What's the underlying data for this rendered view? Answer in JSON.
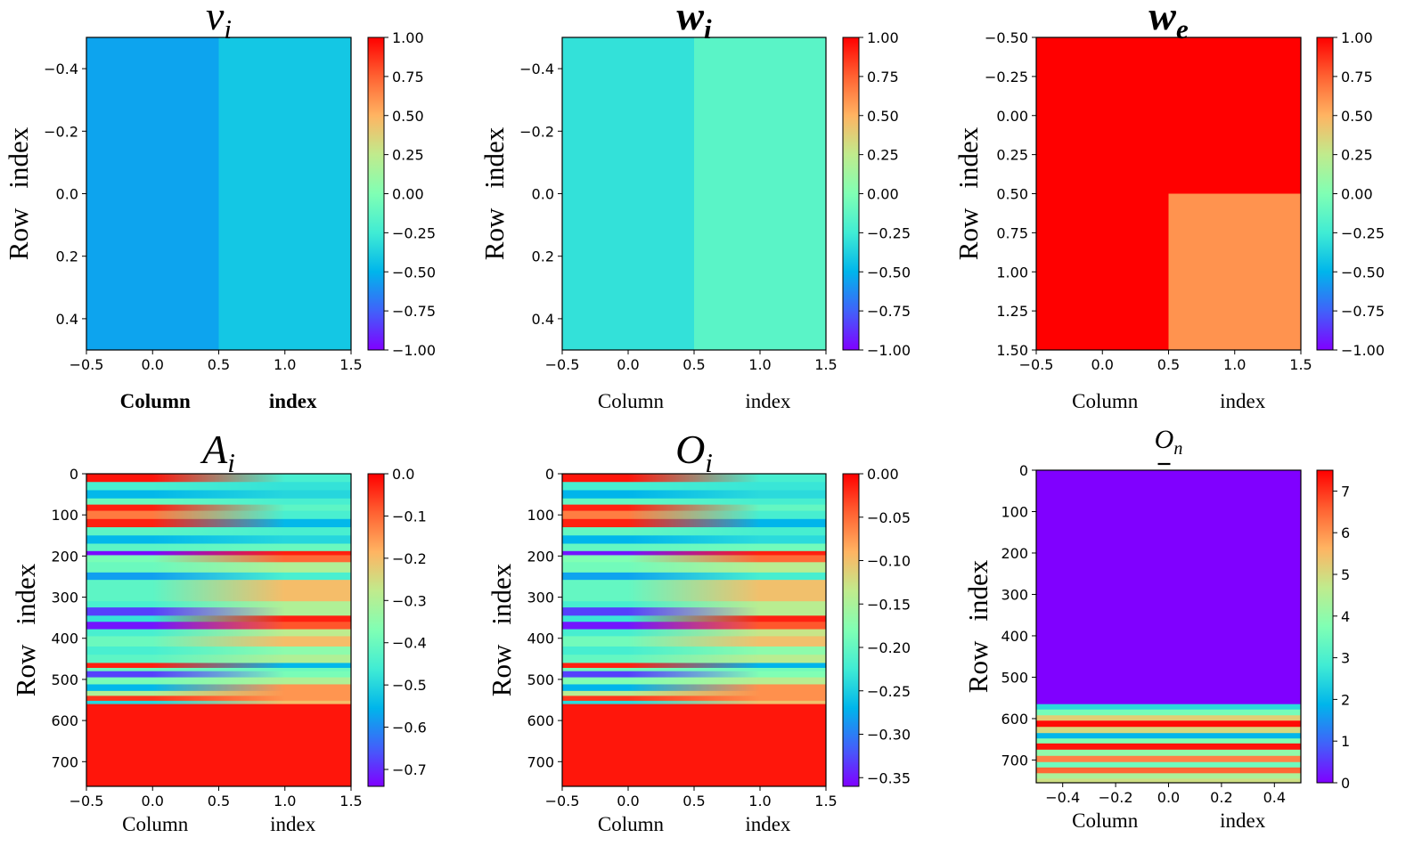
{
  "figure": "2x3 heatmap grid",
  "chart_data": [
    {
      "type": "heatmap",
      "title": "v",
      "subscript": "i",
      "title_bold": false,
      "xlabel_left": "Column",
      "xlabel_right": "index",
      "xlabel_bold": true,
      "ylabel_left": "Row",
      "ylabel_right": "index",
      "xlim": [
        -0.5,
        1.5
      ],
      "ylim": [
        -0.5,
        0.5
      ],
      "xticks": [
        "−0.5",
        "0.0",
        "0.5",
        "1.0",
        "1.5"
      ],
      "yticks": [
        "−0.4",
        "−0.2",
        "0.0",
        "0.2",
        "0.4"
      ],
      "ytick_values": [
        -0.4,
        -0.2,
        0.0,
        0.2,
        0.4
      ],
      "rows": 1,
      "cols": 2,
      "values": [
        [
          -0.55,
          -0.42
        ]
      ],
      "colorbar": {
        "min": -1.0,
        "max": 1.0,
        "ticks": [
          "1.00",
          "0.75",
          "0.50",
          "0.25",
          "0.00",
          "−0.25",
          "−0.50",
          "−0.75",
          "−1.00"
        ],
        "tick_values": [
          1.0,
          0.75,
          0.5,
          0.25,
          0.0,
          -0.25,
          -0.5,
          -0.75,
          -1.0
        ]
      }
    },
    {
      "type": "heatmap",
      "title": "w",
      "subscript": "i",
      "title_bold": true,
      "xlabel_left": "Column",
      "xlabel_right": "index",
      "xlabel_bold": false,
      "ylabel_left": "Row",
      "ylabel_right": "index",
      "xlim": [
        -0.5,
        1.5
      ],
      "ylim": [
        -0.5,
        0.5
      ],
      "xticks": [
        "−0.5",
        "0.0",
        "0.5",
        "1.0",
        "1.5"
      ],
      "yticks": [
        "−0.4",
        "−0.2",
        "0.0",
        "0.2",
        "0.4"
      ],
      "ytick_values": [
        -0.4,
        -0.2,
        0.0,
        0.2,
        0.4
      ],
      "rows": 1,
      "cols": 2,
      "values": [
        [
          -0.3,
          -0.15
        ]
      ],
      "colorbar": {
        "min": -1.0,
        "max": 1.0,
        "ticks": [
          "1.00",
          "0.75",
          "0.50",
          "0.25",
          "0.00",
          "−0.25",
          "−0.50",
          "−0.75",
          "−1.00"
        ],
        "tick_values": [
          1.0,
          0.75,
          0.5,
          0.25,
          0.0,
          -0.25,
          -0.5,
          -0.75,
          -1.0
        ]
      }
    },
    {
      "type": "heatmap",
      "title": "w",
      "subscript": "e",
      "title_bold": true,
      "xlabel_left": "Column",
      "xlabel_right": "index",
      "xlabel_bold": false,
      "ylabel_left": "Row",
      "ylabel_right": "index",
      "xlim": [
        -0.5,
        1.5
      ],
      "ylim": [
        -0.5,
        1.5
      ],
      "xticks": [
        "−0.5",
        "0.0",
        "0.5",
        "1.0",
        "1.5"
      ],
      "yticks": [
        "−0.50",
        "−0.25",
        "0.00",
        "0.25",
        "0.50",
        "0.75",
        "1.00",
        "1.25",
        "1.50"
      ],
      "ytick_values": [
        -0.5,
        -0.25,
        0.0,
        0.25,
        0.5,
        0.75,
        1.0,
        1.25,
        1.5
      ],
      "rows": 2,
      "cols": 2,
      "values": [
        [
          1.0,
          1.0
        ],
        [
          1.0,
          0.6
        ]
      ],
      "colorbar": {
        "min": -1.0,
        "max": 1.0,
        "ticks": [
          "1.00",
          "0.75",
          "0.50",
          "0.25",
          "0.00",
          "−0.25",
          "−0.50",
          "−0.75",
          "−1.00"
        ],
        "tick_values": [
          1.0,
          0.75,
          0.5,
          0.25,
          0.0,
          -0.25,
          -0.5,
          -0.75,
          -1.0
        ]
      }
    },
    {
      "type": "heatmap",
      "title": "A",
      "subscript": "i",
      "title_bold": false,
      "xlabel_left": "Column",
      "xlabel_right": "index",
      "xlabel_bold": false,
      "ylabel_left": "Row",
      "ylabel_right": "index",
      "xlim": [
        -0.5,
        1.5
      ],
      "ylim": [
        0,
        760
      ],
      "xticks": [
        "−0.5",
        "0.0",
        "0.5",
        "1.0",
        "1.5"
      ],
      "yticks": [
        "0",
        "100",
        "200",
        "300",
        "400",
        "500",
        "600",
        "700"
      ],
      "ytick_values": [
        0,
        100,
        200,
        300,
        400,
        500,
        600,
        700
      ],
      "bands": [
        {
          "y0": 0,
          "y1": 20,
          "left": -0.02,
          "right": -0.45
        },
        {
          "y0": 20,
          "y1": 40,
          "left": -0.45,
          "right": -0.48
        },
        {
          "y0": 40,
          "y1": 60,
          "left": -0.55,
          "right": -0.5
        },
        {
          "y0": 60,
          "y1": 75,
          "left": -0.4,
          "right": -0.45
        },
        {
          "y0": 75,
          "y1": 90,
          "left": -0.03,
          "right": -0.42
        },
        {
          "y0": 90,
          "y1": 110,
          "left": -0.12,
          "right": -0.45
        },
        {
          "y0": 110,
          "y1": 130,
          "left": -0.03,
          "right": -0.55
        },
        {
          "y0": 130,
          "y1": 150,
          "left": -0.42,
          "right": -0.45
        },
        {
          "y0": 150,
          "y1": 170,
          "left": -0.55,
          "right": -0.5
        },
        {
          "y0": 170,
          "y1": 188,
          "left": -0.42,
          "right": -0.4
        },
        {
          "y0": 188,
          "y1": 198,
          "left": -0.73,
          "right": -0.03
        },
        {
          "y0": 198,
          "y1": 215,
          "left": -0.38,
          "right": -0.1
        },
        {
          "y0": 215,
          "y1": 240,
          "left": -0.4,
          "right": -0.3
        },
        {
          "y0": 240,
          "y1": 258,
          "left": -0.58,
          "right": -0.45
        },
        {
          "y0": 258,
          "y1": 310,
          "left": -0.42,
          "right": -0.2
        },
        {
          "y0": 310,
          "y1": 325,
          "left": -0.45,
          "right": -0.3
        },
        {
          "y0": 325,
          "y1": 345,
          "left": -0.68,
          "right": -0.3
        },
        {
          "y0": 345,
          "y1": 360,
          "left": -0.48,
          "right": -0.03
        },
        {
          "y0": 360,
          "y1": 378,
          "left": -0.72,
          "right": -0.08
        },
        {
          "y0": 378,
          "y1": 395,
          "left": -0.45,
          "right": -0.28
        },
        {
          "y0": 395,
          "y1": 420,
          "left": -0.4,
          "right": -0.2
        },
        {
          "y0": 420,
          "y1": 440,
          "left": -0.45,
          "right": -0.35
        },
        {
          "y0": 440,
          "y1": 460,
          "left": -0.42,
          "right": -0.3
        },
        {
          "y0": 460,
          "y1": 472,
          "left": -0.03,
          "right": -0.55
        },
        {
          "y0": 472,
          "y1": 480,
          "left": -0.4,
          "right": -0.4
        },
        {
          "y0": 480,
          "y1": 495,
          "left": -0.68,
          "right": -0.38
        },
        {
          "y0": 495,
          "y1": 512,
          "left": -0.38,
          "right": -0.3
        },
        {
          "y0": 512,
          "y1": 528,
          "left": -0.55,
          "right": -0.15
        },
        {
          "y0": 528,
          "y1": 540,
          "left": -0.3,
          "right": -0.15
        },
        {
          "y0": 540,
          "y1": 552,
          "left": -0.05,
          "right": -0.15
        },
        {
          "y0": 552,
          "y1": 560,
          "left": -0.5,
          "right": -0.2
        },
        {
          "y0": 560,
          "y1": 760,
          "left": -0.02,
          "right": -0.02
        }
      ],
      "colorbar": {
        "min": -0.74,
        "max": 0.0,
        "ticks": [
          "0.0",
          "−0.1",
          "−0.2",
          "−0.3",
          "−0.4",
          "−0.5",
          "−0.6",
          "−0.7"
        ],
        "tick_values": [
          0.0,
          -0.1,
          -0.2,
          -0.3,
          -0.4,
          -0.5,
          -0.6,
          -0.7
        ]
      }
    },
    {
      "type": "heatmap",
      "title": "O",
      "subscript": "i",
      "title_bold": false,
      "xlabel_left": "Column",
      "xlabel_right": "index",
      "xlabel_bold": false,
      "ylabel_left": "Row",
      "ylabel_right": "index",
      "xlim": [
        -0.5,
        1.5
      ],
      "ylim": [
        0,
        760
      ],
      "xticks": [
        "−0.5",
        "0.0",
        "0.5",
        "1.0",
        "1.5"
      ],
      "yticks": [
        "0",
        "100",
        "200",
        "300",
        "400",
        "500",
        "600",
        "700"
      ],
      "ytick_values": [
        0,
        100,
        200,
        300,
        400,
        500,
        600,
        700
      ],
      "bands": [
        {
          "y0": 0,
          "y1": 20,
          "left": -0.01,
          "right": -0.22
        },
        {
          "y0": 20,
          "y1": 40,
          "left": -0.22,
          "right": -0.23
        },
        {
          "y0": 40,
          "y1": 60,
          "left": -0.27,
          "right": -0.24
        },
        {
          "y0": 60,
          "y1": 75,
          "left": -0.2,
          "right": -0.22
        },
        {
          "y0": 75,
          "y1": 90,
          "left": -0.015,
          "right": -0.2
        },
        {
          "y0": 90,
          "y1": 110,
          "left": -0.06,
          "right": -0.22
        },
        {
          "y0": 110,
          "y1": 130,
          "left": -0.015,
          "right": -0.27
        },
        {
          "y0": 130,
          "y1": 150,
          "left": -0.2,
          "right": -0.22
        },
        {
          "y0": 150,
          "y1": 170,
          "left": -0.27,
          "right": -0.24
        },
        {
          "y0": 170,
          "y1": 188,
          "left": -0.2,
          "right": -0.19
        },
        {
          "y0": 188,
          "y1": 198,
          "left": -0.35,
          "right": -0.015
        },
        {
          "y0": 198,
          "y1": 215,
          "left": -0.18,
          "right": -0.05
        },
        {
          "y0": 215,
          "y1": 240,
          "left": -0.19,
          "right": -0.14
        },
        {
          "y0": 240,
          "y1": 258,
          "left": -0.28,
          "right": -0.22
        },
        {
          "y0": 258,
          "y1": 310,
          "left": -0.2,
          "right": -0.1
        },
        {
          "y0": 310,
          "y1": 325,
          "left": -0.22,
          "right": -0.14
        },
        {
          "y0": 325,
          "y1": 345,
          "left": -0.33,
          "right": -0.14
        },
        {
          "y0": 345,
          "y1": 360,
          "left": -0.23,
          "right": -0.015
        },
        {
          "y0": 360,
          "y1": 378,
          "left": -0.35,
          "right": -0.04
        },
        {
          "y0": 378,
          "y1": 395,
          "left": -0.22,
          "right": -0.13
        },
        {
          "y0": 395,
          "y1": 420,
          "left": -0.19,
          "right": -0.1
        },
        {
          "y0": 420,
          "y1": 440,
          "left": -0.22,
          "right": -0.17
        },
        {
          "y0": 440,
          "y1": 460,
          "left": -0.2,
          "right": -0.14
        },
        {
          "y0": 460,
          "y1": 472,
          "left": -0.015,
          "right": -0.27
        },
        {
          "y0": 472,
          "y1": 480,
          "left": -0.19,
          "right": -0.19
        },
        {
          "y0": 480,
          "y1": 495,
          "left": -0.33,
          "right": -0.18
        },
        {
          "y0": 495,
          "y1": 512,
          "left": -0.18,
          "right": -0.14
        },
        {
          "y0": 512,
          "y1": 528,
          "left": -0.27,
          "right": -0.07
        },
        {
          "y0": 528,
          "y1": 540,
          "left": -0.14,
          "right": -0.07
        },
        {
          "y0": 540,
          "y1": 552,
          "left": -0.025,
          "right": -0.07
        },
        {
          "y0": 552,
          "y1": 560,
          "left": -0.24,
          "right": -0.1
        },
        {
          "y0": 560,
          "y1": 760,
          "left": -0.01,
          "right": -0.01
        }
      ],
      "colorbar": {
        "min": -0.36,
        "max": 0.0,
        "ticks": [
          "0.00",
          "−0.05",
          "−0.10",
          "−0.15",
          "−0.20",
          "−0.25",
          "−0.30",
          "−0.35"
        ],
        "tick_values": [
          0.0,
          -0.05,
          -0.1,
          -0.15,
          -0.2,
          -0.25,
          -0.3,
          -0.35
        ]
      }
    },
    {
      "type": "heatmap",
      "title": "O",
      "subscript": "n",
      "title_bold": false,
      "title_small": true,
      "title_underline": true,
      "xlabel_left": "Column",
      "xlabel_right": "index",
      "xlabel_bold": false,
      "ylabel_left": "Row",
      "ylabel_right": "index",
      "xlim": [
        -0.5,
        0.5
      ],
      "ylim": [
        0,
        755
      ],
      "xticks": [
        "−0.4",
        "−0.2",
        "0.0",
        "0.2",
        "0.4"
      ],
      "xtick_values": [
        -0.4,
        -0.2,
        0.0,
        0.2,
        0.4
      ],
      "yticks": [
        "0",
        "100",
        "200",
        "300",
        "400",
        "500",
        "600",
        "700"
      ],
      "ytick_values": [
        0,
        100,
        200,
        300,
        400,
        500,
        600,
        700
      ],
      "bands": [
        {
          "y0": 0,
          "y1": 565,
          "value": 0.0
        },
        {
          "y0": 565,
          "y1": 578,
          "value": 2.5
        },
        {
          "y0": 578,
          "y1": 592,
          "value": 3.6
        },
        {
          "y0": 592,
          "y1": 605,
          "value": 5.2
        },
        {
          "y0": 605,
          "y1": 620,
          "value": 7.4
        },
        {
          "y0": 620,
          "y1": 635,
          "value": 5.0
        },
        {
          "y0": 635,
          "y1": 648,
          "value": 1.9
        },
        {
          "y0": 648,
          "y1": 660,
          "value": 3.8
        },
        {
          "y0": 660,
          "y1": 675,
          "value": 7.3
        },
        {
          "y0": 675,
          "y1": 690,
          "value": 4.0
        },
        {
          "y0": 690,
          "y1": 705,
          "value": 6.2
        },
        {
          "y0": 705,
          "y1": 718,
          "value": 3.5
        },
        {
          "y0": 718,
          "y1": 732,
          "value": 6.5
        },
        {
          "y0": 732,
          "y1": 745,
          "value": 4.4
        },
        {
          "y0": 745,
          "y1": 755,
          "value": 4.9
        }
      ],
      "colorbar": {
        "min": 0,
        "max": 7.5,
        "ticks": [
          "7",
          "6",
          "5",
          "4",
          "3",
          "2",
          "1",
          "0"
        ],
        "tick_values": [
          7,
          6,
          5,
          4,
          3,
          2,
          1,
          0
        ]
      }
    }
  ]
}
